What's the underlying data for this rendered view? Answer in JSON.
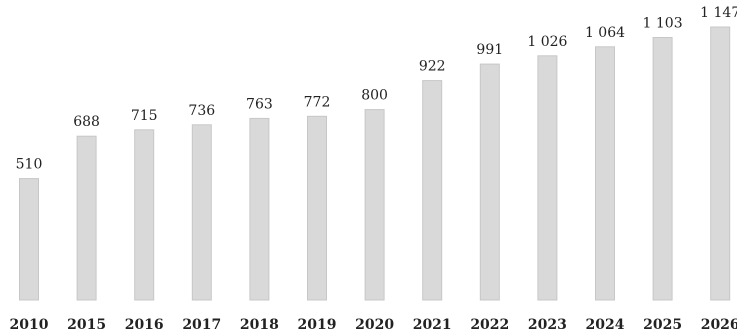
{
  "chart_data": {
    "type": "bar",
    "categories": [
      "2010",
      "2015",
      "2016",
      "2017",
      "2018",
      "2019",
      "2020",
      "2021",
      "2022",
      "2023",
      "2024",
      "2025",
      "2026"
    ],
    "values": [
      510,
      688,
      715,
      736,
      763,
      772,
      800,
      922,
      991,
      1026,
      1064,
      1103,
      1147
    ],
    "value_labels": [
      "510",
      "688",
      "715",
      "736",
      "763",
      "772",
      "800",
      "922",
      "991",
      "1 026",
      "1 064",
      "1 103",
      "1 147"
    ],
    "bar_color": "#d9d9d9",
    "title": "",
    "xlabel": "",
    "ylabel": "",
    "ylim": [
      0,
      1147
    ],
    "grid": false,
    "legend": "none"
  }
}
